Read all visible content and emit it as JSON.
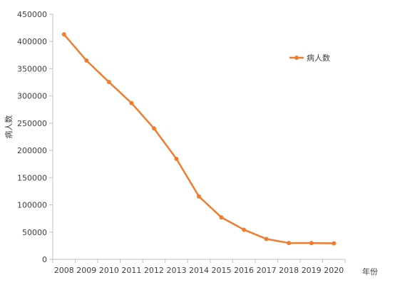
{
  "chart_data": {
    "type": "line",
    "title": "",
    "xlabel": "年份",
    "ylabel": "病人数",
    "x": [
      "2008",
      "2009",
      "2010",
      "2011",
      "2012",
      "2013",
      "2014",
      "2015",
      "2016",
      "2017",
      "2018",
      "2019",
      "2020"
    ],
    "series": [
      {
        "name": "病人数",
        "color": "#ED7D31",
        "values": [
          413000,
          365000,
          325500,
          287000,
          240500,
          184500,
          115500,
          77000,
          54500,
          37500,
          30000,
          30000,
          29500
        ]
      }
    ],
    "ylim": [
      0,
      450000
    ],
    "yticks": [
      "0",
      "50000",
      "100000",
      "150000",
      "200000",
      "250000",
      "300000",
      "350000",
      "400000",
      "450000"
    ],
    "grid": false,
    "legend_position": "top-right"
  }
}
